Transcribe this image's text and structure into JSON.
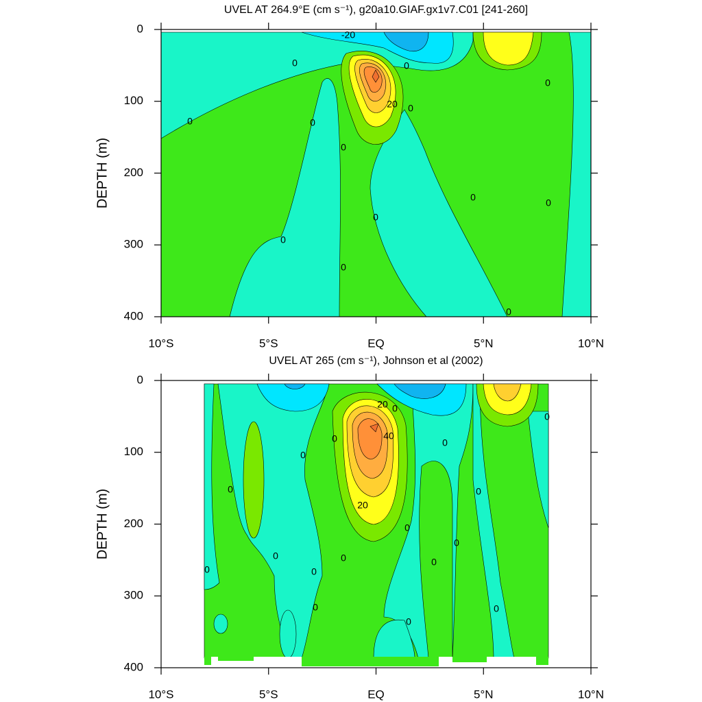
{
  "chart_data": [
    {
      "type": "contour",
      "title": "UVEL AT 264.9°E (cm s⁻¹), g20a10.GIAF.gx1v7.C01 [241-260]",
      "ylabel": "DEPTH (m)",
      "xlim": [
        -10,
        10
      ],
      "xticks": [
        {
          "value": -10,
          "label": "10°S"
        },
        {
          "value": -5,
          "label": "5°S"
        },
        {
          "value": 0,
          "label": "EQ"
        },
        {
          "value": 5,
          "label": "5°N"
        },
        {
          "value": 10,
          "label": "10°N"
        }
      ],
      "ylim": [
        400,
        0
      ],
      "yticks": [
        0,
        100,
        200,
        300,
        400
      ],
      "contour_labels": [
        -20,
        0,
        0,
        0,
        0,
        20,
        0,
        0,
        0,
        0,
        0,
        0,
        0,
        0,
        0
      ]
    },
    {
      "type": "contour",
      "title": "UVEL AT 265 (cm s⁻¹), Johnson et al (2002)",
      "ylabel": "DEPTH (m)",
      "xlim": [
        -10,
        10
      ],
      "xticks": [
        {
          "value": -10,
          "label": "10°S"
        },
        {
          "value": -5,
          "label": "5°S"
        },
        {
          "value": 0,
          "label": "EQ"
        },
        {
          "value": 5,
          "label": "5°N"
        },
        {
          "value": 10,
          "label": "10°N"
        }
      ],
      "ylim": [
        400,
        0
      ],
      "yticks": [
        0,
        100,
        200,
        300,
        400
      ],
      "contour_labels": [
        20,
        0,
        40,
        20,
        0,
        0,
        0,
        0,
        0,
        0,
        0,
        0,
        0,
        0,
        0,
        0,
        0,
        0,
        0,
        0
      ]
    }
  ]
}
